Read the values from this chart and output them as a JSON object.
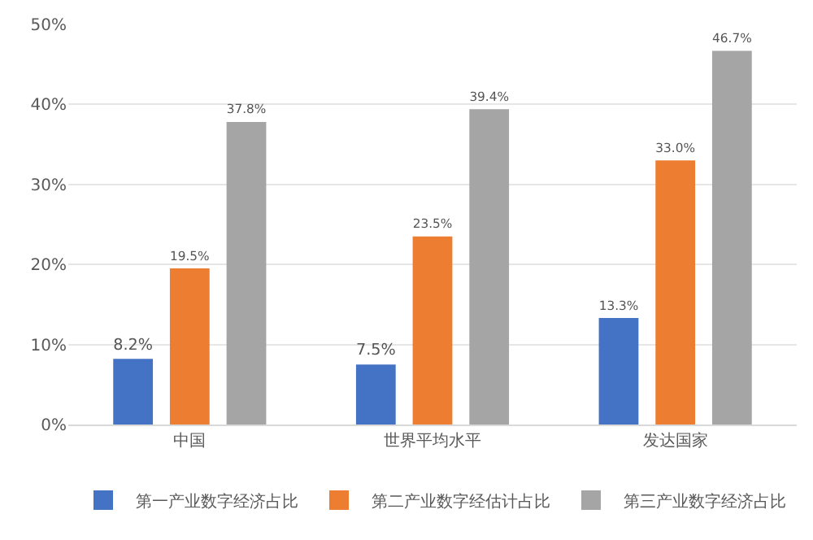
{
  "chart_data": {
    "type": "bar",
    "categories": [
      "中国",
      "世界平均水平",
      "发达国家"
    ],
    "series": [
      {
        "name": "第一产业数字经济占比",
        "color": "#4472c4",
        "values": [
          8.2,
          7.5,
          13.3
        ],
        "value_labels": [
          "8.2%",
          "7.5%",
          "13.3%"
        ]
      },
      {
        "name": "第二产业数字经估计占比",
        "color": "#ed7d31",
        "values": [
          19.5,
          23.5,
          33.0
        ],
        "value_labels": [
          "19.5%",
          "23.5%",
          "33.0%"
        ]
      },
      {
        "name": "第三产业数字经济占比",
        "color": "#a5a5a5",
        "values": [
          37.8,
          39.4,
          46.7
        ],
        "value_labels": [
          "37.8%",
          "39.4%",
          "46.7%"
        ]
      }
    ],
    "ylim": [
      0,
      50
    ],
    "yticks": [
      {
        "value": 0,
        "label": "0%"
      },
      {
        "value": 10,
        "label": "10%"
      },
      {
        "value": 20,
        "label": "20%"
      },
      {
        "value": 30,
        "label": "30%"
      },
      {
        "value": 40,
        "label": "40%"
      },
      {
        "value": 50,
        "label": "50%"
      }
    ],
    "grid": "y",
    "legend": "bottom"
  }
}
